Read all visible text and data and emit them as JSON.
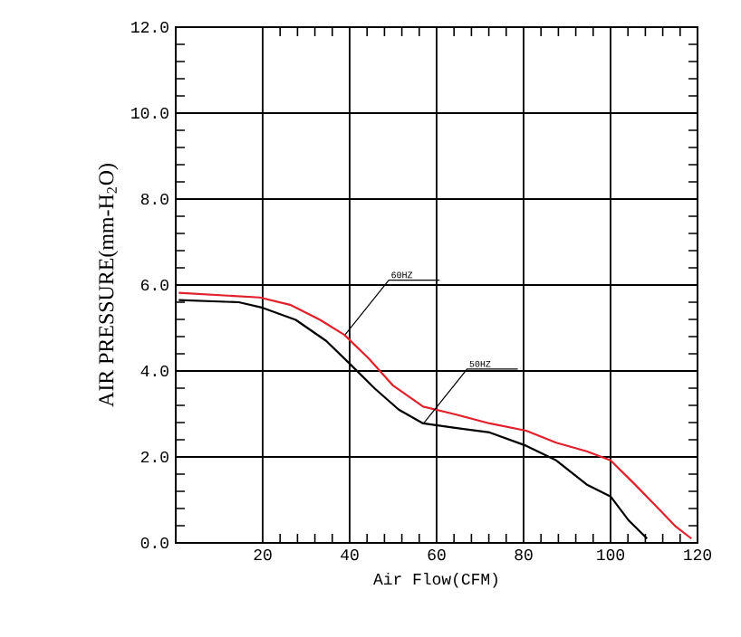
{
  "chart_data": {
    "type": "line",
    "xlabel": "Air Flow(CFM)",
    "ylabel": "AIR PRESSURE(mm-H$_{2}$O)",
    "xlim": [
      0,
      120
    ],
    "xticks": [
      20,
      40,
      60,
      80,
      100,
      120
    ],
    "ylim": [
      0,
      12
    ],
    "yticks": [
      {
        "value": 0,
        "label": "0.0"
      },
      {
        "value": 2,
        "label": "2.0"
      },
      {
        "value": 4,
        "label": "4.0"
      },
      {
        "value": 6,
        "label": "6.0"
      },
      {
        "value": 8,
        "label": "8.0"
      },
      {
        "value": 10,
        "label": "10.0"
      },
      {
        "value": 12,
        "label": "12.0"
      }
    ],
    "grid": true,
    "marker": "none",
    "line_style": "solid",
    "series": [
      {
        "color": "#e0202a",
        "x": [
          0.7,
          19.3,
          26.3,
          33.2,
          38.8,
          44.4,
          50,
          56.9,
          63.9,
          72.2,
          80.6,
          87.5,
          94.5,
          100,
          105.6,
          111,
          115,
          118.6
        ],
        "values": [
          5.82,
          5.71,
          5.54,
          5.19,
          4.84,
          4.29,
          3.66,
          3.17,
          3.0,
          2.78,
          2.61,
          2.33,
          2.13,
          1.92,
          1.36,
          0.8,
          0.38,
          0.1
        ]
      },
      {
        "color": "#000000",
        "x": [
          0.7,
          14.5,
          20,
          27.6,
          34.6,
          40.2,
          45.8,
          51.3,
          56.9,
          63.9,
          72.2,
          80.6,
          87.5,
          94.5,
          100,
          104.2,
          108.4
        ],
        "values": [
          5.65,
          5.6,
          5.47,
          5.19,
          4.7,
          4.15,
          3.59,
          3.1,
          2.78,
          2.68,
          2.57,
          2.26,
          1.92,
          1.36,
          1.08,
          0.52,
          0.1
        ]
      }
    ],
    "annotations": [
      {
        "text": "60HZ",
        "x": 39,
        "y": 4.85
      },
      {
        "text": "50HZ",
        "x": 57,
        "y": 2.78
      }
    ]
  }
}
